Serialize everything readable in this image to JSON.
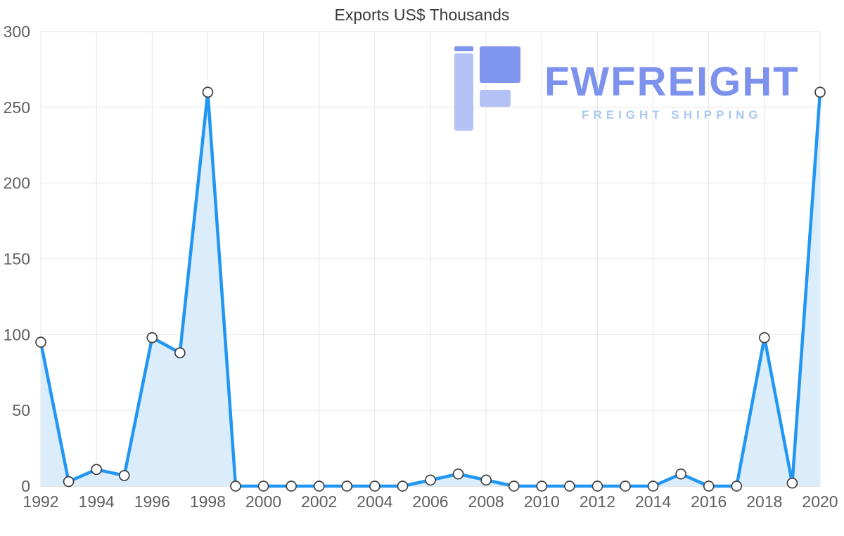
{
  "title": "Exports US$ Thousands",
  "watermark": {
    "brand": "FWFREIGHT",
    "tagline": "FREIGHT SHIPPING",
    "brand_color": "#7d92ec",
    "tagline_color": "#a9c7f0",
    "icon_dark_color": "#8095ee",
    "icon_light_color": "#b4c1f4"
  },
  "chart_data": {
    "type": "area",
    "title": "Exports US$ Thousands",
    "x": [
      1992,
      1993,
      1994,
      1995,
      1996,
      1997,
      1998,
      1999,
      2000,
      2001,
      2002,
      2003,
      2004,
      2005,
      2006,
      2007,
      2008,
      2009,
      2010,
      2011,
      2012,
      2013,
      2014,
      2015,
      2016,
      2017,
      2018,
      2019,
      2020
    ],
    "values": [
      95,
      3,
      11,
      7,
      98,
      88,
      260,
      0,
      0,
      0,
      0,
      0,
      0,
      0,
      4,
      8,
      4,
      0,
      0,
      0,
      0,
      0,
      0,
      8,
      0,
      0,
      98,
      2,
      260
    ],
    "x_tick_labels": [
      "1992",
      "1994",
      "1996",
      "1998",
      "2000",
      "2002",
      "2004",
      "2006",
      "2008",
      "2010",
      "2012",
      "2014",
      "2016",
      "2018",
      "2020"
    ],
    "y_ticks": [
      0,
      50,
      100,
      150,
      200,
      250,
      300
    ],
    "ylim": [
      0,
      300
    ],
    "xlabel": "",
    "ylabel": "",
    "grid": true,
    "legend": "none",
    "line_color": "#2196f3",
    "fill_color": "#dbecfb",
    "marker_fill": "#ffffff",
    "marker_stroke": "#3f3f3f",
    "grid_color": "#e4e4e4",
    "axis_line_color": "#c9c9c9",
    "axis_text_color": "#5f5f5f"
  }
}
